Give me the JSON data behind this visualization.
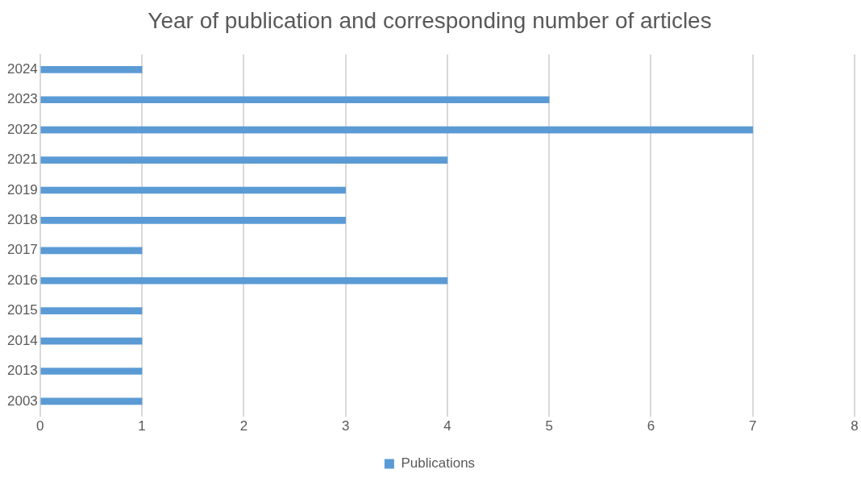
{
  "chart_data": {
    "type": "bar",
    "orientation": "horizontal",
    "title": "Year of publication and corresponding number of articles",
    "categories": [
      "2024",
      "2023",
      "2022",
      "2021",
      "2019",
      "2018",
      "2017",
      "2016",
      "2015",
      "2014",
      "2013",
      "2003"
    ],
    "series": [
      {
        "name": "Publications",
        "color": "#5b9bd5",
        "values": [
          1,
          5,
          7,
          4,
          3,
          3,
          1,
          4,
          1,
          1,
          1,
          1
        ]
      }
    ],
    "xlim": [
      0,
      8
    ],
    "xticks": [
      0,
      1,
      2,
      3,
      4,
      5,
      6,
      7,
      8
    ],
    "grid": "x",
    "legend": "bottom"
  }
}
